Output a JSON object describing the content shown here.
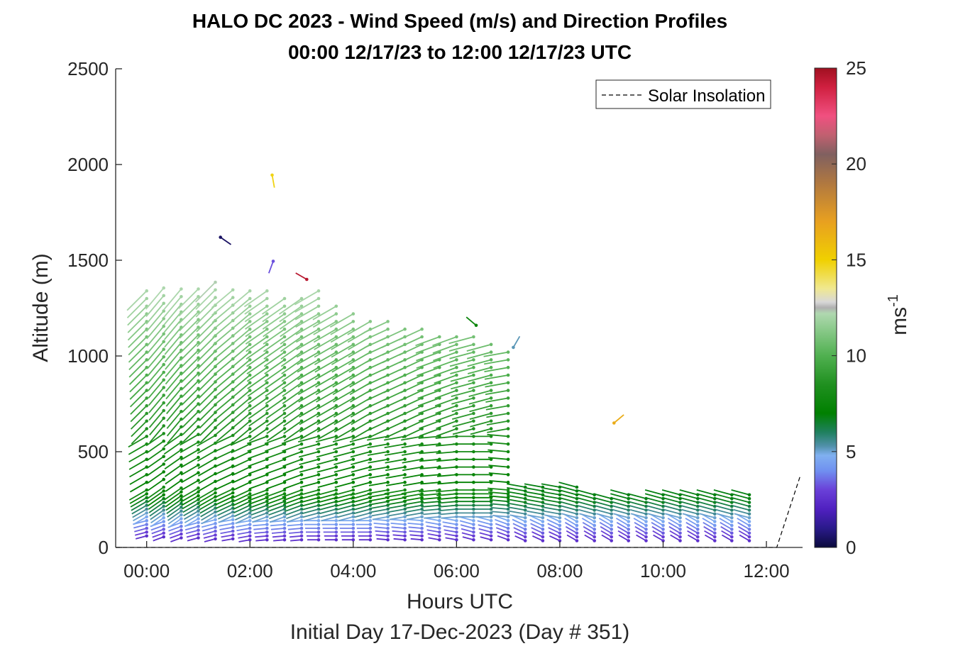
{
  "chart_data": {
    "type": "wind-barb-profile",
    "title": "HALO DC 2023 - Wind Speed (m/s) and Direction Profiles",
    "subtitle": "00:00 12/17/23 to 12:00 12/17/23  UTC",
    "xlabel": "Hours UTC",
    "xlabel2": "Initial Day 17-Dec-2023 (Day # 351)",
    "ylabel": "Altitude (m)",
    "xlim": [
      -0.6,
      12.7
    ],
    "ylim": [
      0,
      2500
    ],
    "x_ticks": [
      0,
      2,
      4,
      6,
      8,
      10,
      12
    ],
    "x_tick_labels": [
      "00:00",
      "02:00",
      "04:00",
      "06:00",
      "08:00",
      "10:00",
      "12:00"
    ],
    "y_ticks": [
      0,
      500,
      1000,
      1500,
      2000,
      2500
    ],
    "y_tick_labels": [
      "0",
      "500",
      "1000",
      "1500",
      "2000",
      "2500"
    ],
    "legend": {
      "location": "top-right",
      "entries": [
        "Solar Insolation"
      ]
    },
    "colorbar": {
      "label": "ms",
      "label_exponent": "-1",
      "range": [
        0,
        25
      ],
      "ticks": [
        0,
        5,
        10,
        15,
        20,
        25
      ],
      "tick_labels": [
        "0",
        "5",
        "10",
        "15",
        "20",
        "25"
      ],
      "stops": [
        [
          0.0,
          "#0a0a3c"
        ],
        [
          1.0,
          "#2a1a8a"
        ],
        [
          2.0,
          "#5020c0"
        ],
        [
          3.0,
          "#6a40d8"
        ],
        [
          4.0,
          "#7090f0"
        ],
        [
          4.8,
          "#80b0f0"
        ],
        [
          5.3,
          "#5090a8"
        ],
        [
          6.0,
          "#208060"
        ],
        [
          7.0,
          "#008000"
        ],
        [
          8.5,
          "#209020"
        ],
        [
          10.0,
          "#50b050"
        ],
        [
          11.5,
          "#90cc90"
        ],
        [
          12.2,
          "#b0d8b0"
        ],
        [
          12.5,
          "#b0b0b0"
        ],
        [
          12.8,
          "#d8d8d8"
        ],
        [
          13.5,
          "#f0e890"
        ],
        [
          15.0,
          "#f0d000"
        ],
        [
          17.0,
          "#e8a020"
        ],
        [
          19.0,
          "#b07840"
        ],
        [
          20.5,
          "#806060"
        ],
        [
          21.5,
          "#c06070"
        ],
        [
          22.5,
          "#f05080"
        ],
        [
          24.0,
          "#d02040"
        ],
        [
          25.0,
          "#a01020"
        ]
      ]
    },
    "profiles": [
      {
        "t": 0.0,
        "top": 1375,
        "dir": 240,
        "sfc": 60
      },
      {
        "t": 0.33,
        "top": 1370,
        "dir": 235,
        "sfc": 55
      },
      {
        "t": 0.67,
        "top": 1365,
        "dir": 235,
        "sfc": 50
      },
      {
        "t": 1.0,
        "top": 1355,
        "dir": 240,
        "sfc": 50
      },
      {
        "t": 1.33,
        "top": 1400,
        "dir": 240,
        "sfc": 45
      },
      {
        "t": 1.67,
        "top": 1355,
        "dir": 245,
        "sfc": 45
      },
      {
        "t": 2.0,
        "top": 1350,
        "dir": 245,
        "sfc": 40
      },
      {
        "t": 2.33,
        "top": 1370,
        "dir": 250,
        "sfc": 40
      },
      {
        "t": 2.67,
        "top": 1330,
        "dir": 250,
        "sfc": 40
      },
      {
        "t": 3.0,
        "top": 1310,
        "dir": 250,
        "sfc": 40
      },
      {
        "t": 3.33,
        "top": 1360,
        "dir": 255,
        "sfc": 40
      },
      {
        "t": 3.67,
        "top": 1290,
        "dir": 255,
        "sfc": 40
      },
      {
        "t": 4.0,
        "top": 1220,
        "dir": 255,
        "sfc": 40
      },
      {
        "t": 4.33,
        "top": 1200,
        "dir": 255,
        "sfc": 40
      },
      {
        "t": 4.67,
        "top": 1190,
        "dir": 260,
        "sfc": 40
      },
      {
        "t": 5.0,
        "top": 1160,
        "dir": 260,
        "sfc": 40
      },
      {
        "t": 5.33,
        "top": 1140,
        "dir": 260,
        "sfc": 40
      },
      {
        "t": 5.67,
        "top": 1120,
        "dir": 265,
        "sfc": 40
      },
      {
        "t": 6.0,
        "top": 1110,
        "dir": 265,
        "sfc": 40
      },
      {
        "t": 6.33,
        "top": 1100,
        "dir": 270,
        "sfc": 40
      },
      {
        "t": 6.67,
        "top": 1070,
        "dir": 270,
        "sfc": 40
      },
      {
        "t": 7.0,
        "top": 1050,
        "dir": 275,
        "sfc": 40
      },
      {
        "t": 7.33,
        "top": 350,
        "dir": 280,
        "sfc": 35
      },
      {
        "t": 7.67,
        "top": 340,
        "dir": 280,
        "sfc": 35
      },
      {
        "t": 8.0,
        "top": 330,
        "dir": 280,
        "sfc": 35
      },
      {
        "t": 8.33,
        "top": 320,
        "dir": 285,
        "sfc": 35
      },
      {
        "t": 8.67,
        "top": 280,
        "dir": 285,
        "sfc": 35
      },
      {
        "t": 9.0,
        "top": 270,
        "dir": 285,
        "sfc": 35
      },
      {
        "t": 9.33,
        "top": 275,
        "dir": 285,
        "sfc": 35
      },
      {
        "t": 9.67,
        "top": 270,
        "dir": 285,
        "sfc": 35
      },
      {
        "t": 10.0,
        "top": 280,
        "dir": 285,
        "sfc": 35
      },
      {
        "t": 10.33,
        "top": 280,
        "dir": 285,
        "sfc": 35
      },
      {
        "t": 10.67,
        "top": 280,
        "dir": 285,
        "sfc": 35
      },
      {
        "t": 11.0,
        "top": 285,
        "dir": 285,
        "sfc": 35
      },
      {
        "t": 11.33,
        "top": 290,
        "dir": 285,
        "sfc": 35
      },
      {
        "t": 11.67,
        "top": 285,
        "dir": 285,
        "sfc": 35
      }
    ],
    "isolated_barbs": [
      {
        "t": 1.43,
        "alt": 1620,
        "speed": 0.5,
        "dir": 125
      },
      {
        "t": 2.43,
        "alt": 1945,
        "speed": 14.8,
        "dir": 170
      },
      {
        "t": 2.45,
        "alt": 1495,
        "speed": 3.2,
        "dir": 200
      },
      {
        "t": 3.1,
        "alt": 1400,
        "speed": 24.5,
        "dir": 300
      },
      {
        "t": 6.38,
        "alt": 1160,
        "speed": 7.5,
        "dir": 310
      },
      {
        "t": 7.1,
        "alt": 1045,
        "speed": 5.2,
        "dir": 30
      },
      {
        "t": 9.05,
        "alt": 650,
        "speed": 16.5,
        "dir": 50
      }
    ],
    "solar_insolation": {
      "style": "dashed",
      "x": [
        -0.6,
        12.2,
        12.2,
        12.65
      ],
      "y": [
        0,
        0,
        0,
        370
      ]
    }
  }
}
